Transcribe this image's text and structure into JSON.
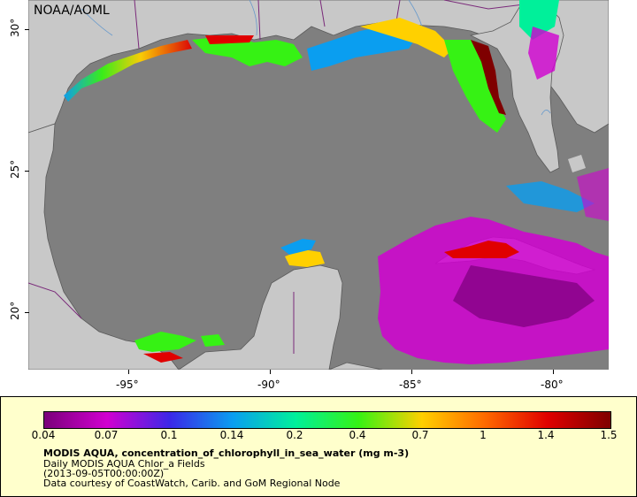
{
  "credit": "NOAA/AOML",
  "axes": {
    "y_ticks": [
      "30°",
      "25°",
      "20°"
    ],
    "x_ticks": [
      "-95°",
      "-90°",
      "-85°",
      "-80°"
    ]
  },
  "legend": {
    "ticks": [
      "0.04",
      "0.07",
      "0.1",
      "0.14",
      "0.2",
      "0.4",
      "0.7",
      "1",
      "1.4",
      "1.5"
    ],
    "title": "MODIS AQUA, concentration_of_chlorophyll_in_sea_water (mg m-3)",
    "line1": "Daily MODIS AQUA Chlor_a Fields",
    "line2": "(2013-09-05T00:00:00Z)",
    "line3": "Data courtesy of CoastWatch, Carib. and GoM Regional Node"
  },
  "colors": {
    "land": "#c8c8c8",
    "ocean_nodata": "#7f7f7f",
    "coastline": "#5a5a5a",
    "border": "#7a2a7a",
    "river": "#6699cc",
    "panel_bg": "#ffffcc",
    "scale": [
      "#7a007a",
      "#d100d1",
      "#3b28e8",
      "#0a9ef0",
      "#00f09a",
      "#36f214",
      "#ffd000",
      "#ff6a00",
      "#e00000",
      "#7f0000"
    ]
  }
}
